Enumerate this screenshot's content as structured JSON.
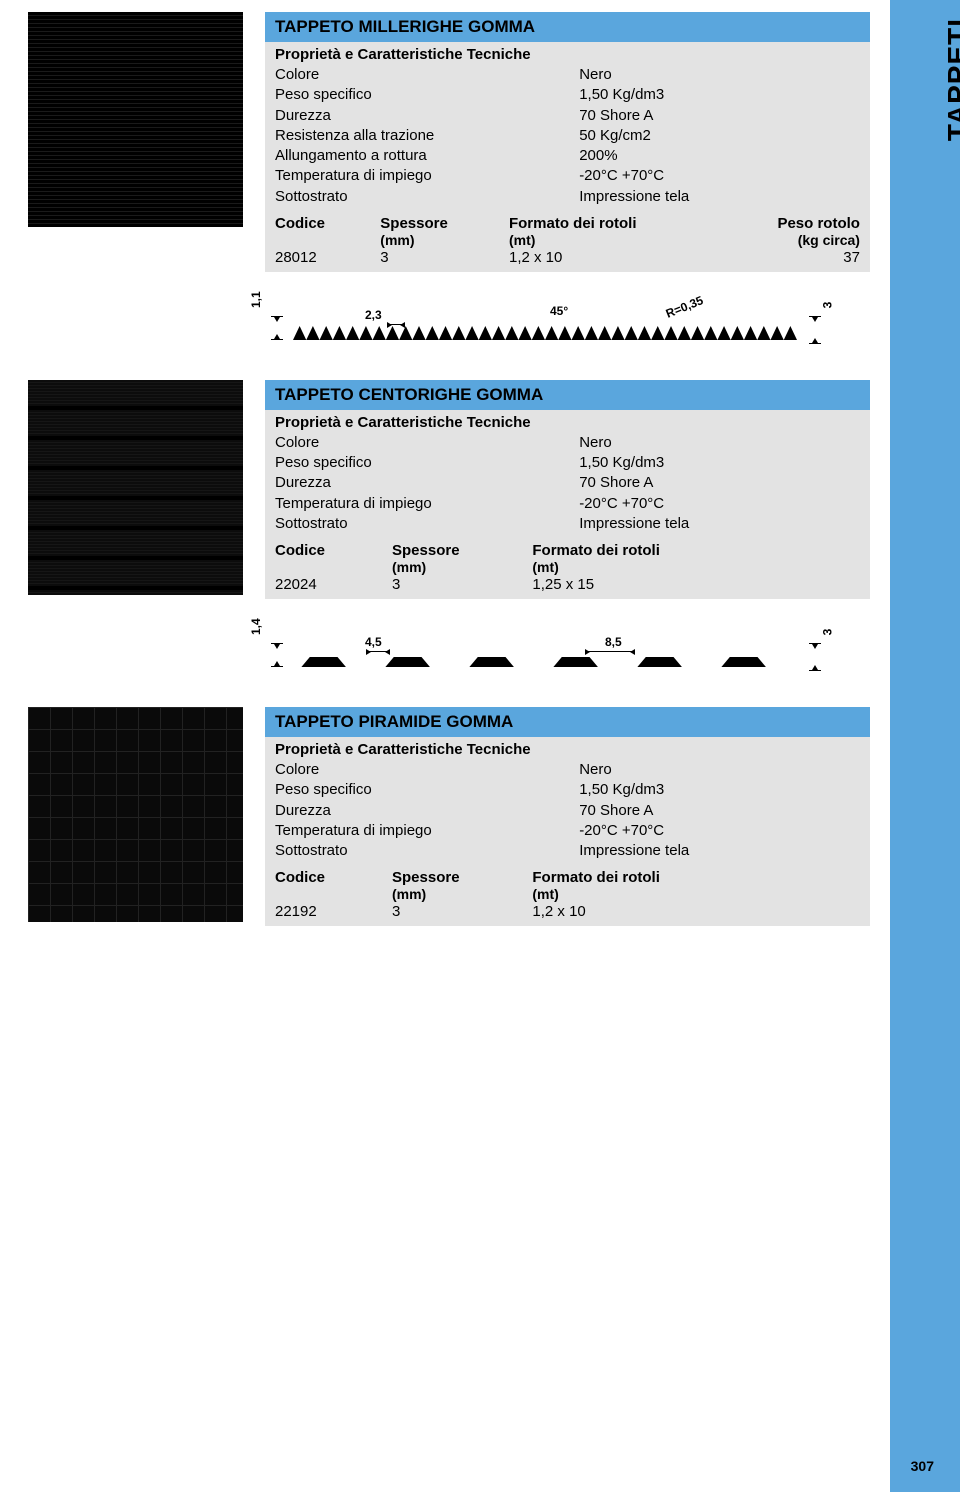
{
  "colors": {
    "accent": "#5aa6dd",
    "panel_bg": "#e3e3e3",
    "page_bg": "#ffffff",
    "text": "#000000",
    "thumb_bg": "#0a0a0a"
  },
  "typography": {
    "title_fontsize": 17,
    "title_weight": 900,
    "body_fontsize": 15,
    "dim_fontsize": 12,
    "sidetab_fontsize": 28
  },
  "side_tab": "TAPPETI",
  "page_number": "307",
  "subtitle": "Proprietà e Caratteristiche Tecniche",
  "tbl_head": {
    "codice": "Codice",
    "spessore": "Spessore",
    "spessore_u": "(mm)",
    "formato": "Formato dei rotoli",
    "formato_u": "(mt)",
    "peso": "Peso rotolo",
    "peso_u": "(kg circa)"
  },
  "products": [
    {
      "title": "TAPPETO MILLERIGHE GOMMA",
      "props": [
        {
          "k": "Colore",
          "v": "Nero"
        },
        {
          "k": "Peso specifico",
          "v": "1,50 Kg/dm3"
        },
        {
          "k": "Durezza",
          "v": "70 Shore A"
        },
        {
          "k": "Resistenza alla trazione",
          "v": "50 Kg/cm2"
        },
        {
          "k": "Allungamento a rottura",
          "v": "200%"
        },
        {
          "k": "Temperatura di impiego",
          "v": "-20°C +70°C"
        },
        {
          "k": "Sottostrato",
          "v": "Impressione tela"
        }
      ],
      "row": {
        "codice": "28012",
        "spessore": "3",
        "formato": "1,2 x 10",
        "peso": "37"
      },
      "diagram": {
        "left_h": "1,1",
        "pitch": "2,3",
        "angle": "45°",
        "radius": "R=0,35",
        "right_h": "3",
        "tooth_count": 38
      }
    },
    {
      "title": "TAPPETO CENTORIGHE GOMMA",
      "props": [
        {
          "k": "Colore",
          "v": "Nero"
        },
        {
          "k": "Peso specifico",
          "v": "1,50 Kg/dm3"
        },
        {
          "k": "Durezza",
          "v": "70 Shore A"
        },
        {
          "k": "Temperatura di impiego",
          "v": "-20°C +70°C"
        },
        {
          "k": "Sottostrato",
          "v": "Impressione tela"
        }
      ],
      "row": {
        "codice": "22024",
        "spessore": "3",
        "formato": "1,25 x 15"
      },
      "diagram": {
        "left_h": "1,4",
        "top_w": "4,5",
        "gap_w": "8,5",
        "right_h": "3",
        "trap_count": 6
      }
    },
    {
      "title": "TAPPETO PIRAMIDE GOMMA",
      "props": [
        {
          "k": "Colore",
          "v": "Nero"
        },
        {
          "k": "Peso specifico",
          "v": "1,50 Kg/dm3"
        },
        {
          "k": "Durezza",
          "v": "70 Shore A"
        },
        {
          "k": "Temperatura di impiego",
          "v": "-20°C +70°C"
        },
        {
          "k": "Sottostrato",
          "v": "Impressione tela"
        }
      ],
      "row": {
        "codice": "22192",
        "spessore": "3",
        "formato": "1,2 x 10"
      }
    }
  ]
}
